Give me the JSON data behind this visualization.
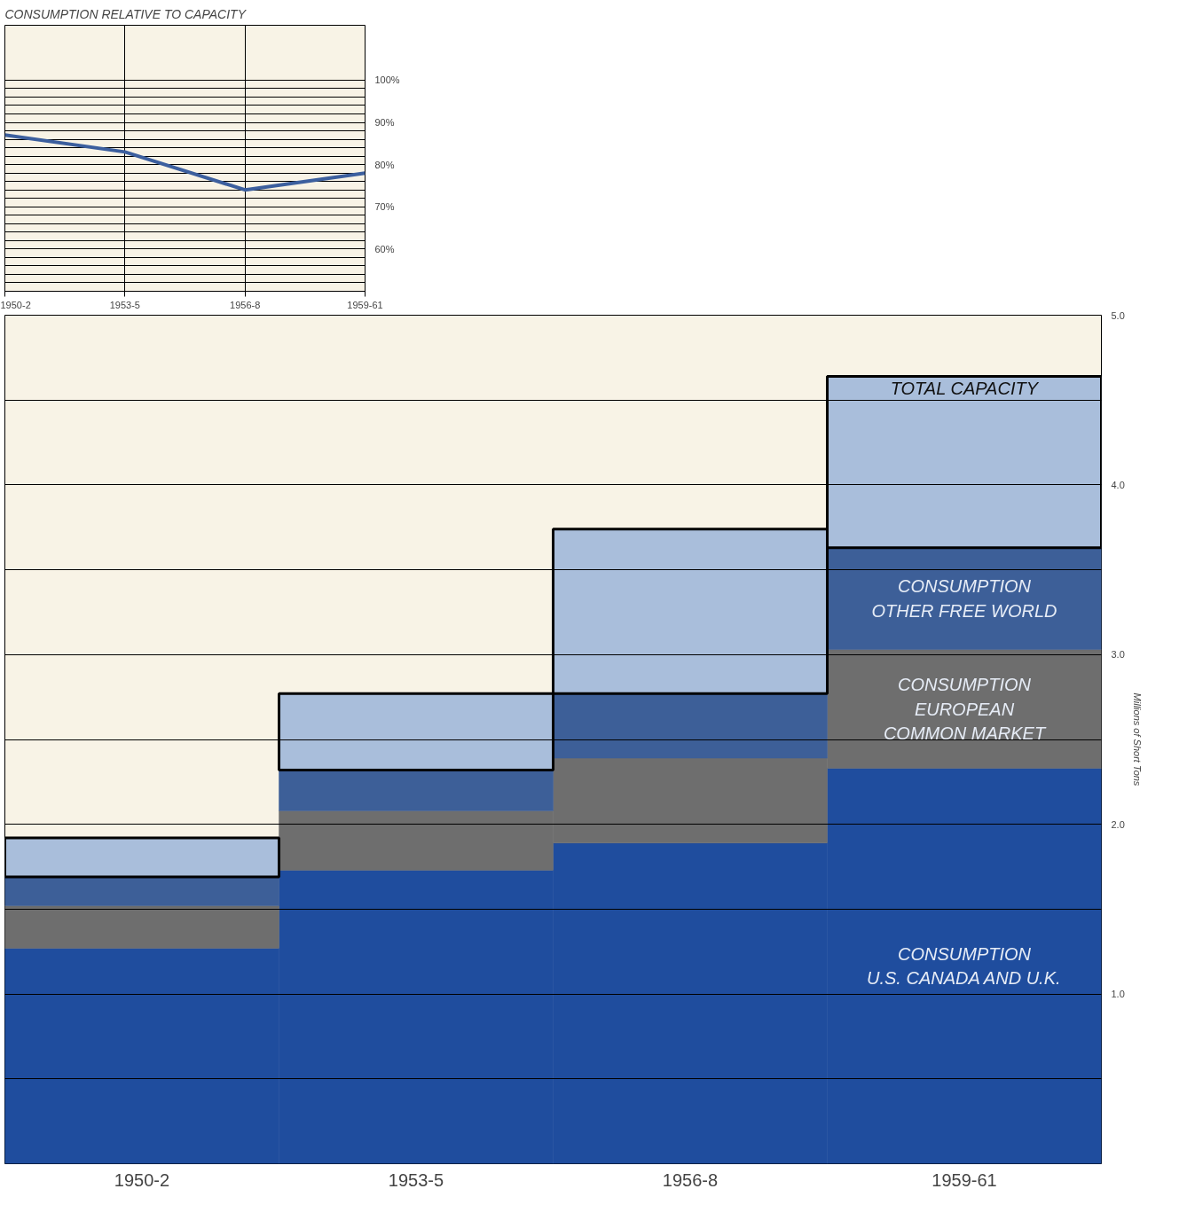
{
  "chart_data": [
    {
      "type": "line",
      "title": "CONSUMPTION RELATIVE TO CAPACITY",
      "categories": [
        "1950-2",
        "1953-5",
        "1956-8",
        "1959-61"
      ],
      "values": [
        87,
        83,
        74,
        78
      ],
      "color": "#3c5f9e",
      "ylim": [
        50,
        113
      ],
      "yticks": [
        {
          "value": 50,
          "label": null
        },
        {
          "value": 52,
          "label": null
        },
        {
          "value": 54,
          "label": null
        },
        {
          "value": 56,
          "label": null
        },
        {
          "value": 58,
          "label": null
        },
        {
          "value": 60,
          "label": "60%"
        },
        {
          "value": 62,
          "label": null
        },
        {
          "value": 64,
          "label": null
        },
        {
          "value": 66,
          "label": null
        },
        {
          "value": 68,
          "label": null
        },
        {
          "value": 70,
          "label": "70%"
        },
        {
          "value": 72,
          "label": null
        },
        {
          "value": 74,
          "label": null
        },
        {
          "value": 76,
          "label": null
        },
        {
          "value": 78,
          "label": null
        },
        {
          "value": 80,
          "label": "80%"
        },
        {
          "value": 82,
          "label": null
        },
        {
          "value": 84,
          "label": null
        },
        {
          "value": 86,
          "label": null
        },
        {
          "value": 88,
          "label": null
        },
        {
          "value": 90,
          "label": "90%"
        },
        {
          "value": 92,
          "label": null
        },
        {
          "value": 94,
          "label": null
        },
        {
          "value": 96,
          "label": null
        },
        {
          "value": 98,
          "label": null
        },
        {
          "value": 100,
          "label": "100%"
        }
      ],
      "grid": true
    },
    {
      "type": "bar",
      "stacked": true,
      "categories": [
        "1950-2",
        "1953-5",
        "1956-8",
        "1959-61"
      ],
      "ylabel": "Millions of Short Tons",
      "ylim": [
        0,
        5
      ],
      "yticks": [
        {
          "value": 0.5,
          "label": null
        },
        {
          "value": 1,
          "label": "1.0"
        },
        {
          "value": 1.5,
          "label": null
        },
        {
          "value": 2,
          "label": "2.0"
        },
        {
          "value": 2.5,
          "label": null
        },
        {
          "value": 3,
          "label": "3.0"
        },
        {
          "value": 3.5,
          "label": null
        },
        {
          "value": 4,
          "label": "4.0"
        },
        {
          "value": 4.5,
          "label": null
        },
        {
          "value": 5,
          "label": "5.0"
        }
      ],
      "grid": "y",
      "series": [
        {
          "name": "CONSUMPTION\nU.S. CANADA AND U.K.",
          "color": "#1f4d9e",
          "values": [
            1.27,
            1.73,
            1.89,
            2.33
          ]
        },
        {
          "name": "CONSUMPTION\nEUROPEAN\nCOMMON MARKET",
          "color": "#6e6e6e",
          "values": [
            0.25,
            0.35,
            0.5,
            0.7
          ]
        },
        {
          "name": "CONSUMPTION\nOTHER FREE WORLD",
          "color": "#3d5f98",
          "values": [
            0.17,
            0.24,
            0.38,
            0.6
          ]
        },
        {
          "name": "TOTAL CAPACITY",
          "color": "#a9bedb",
          "values": [
            0.23,
            0.45,
            0.97,
            1.01
          ]
        }
      ]
    }
  ]
}
